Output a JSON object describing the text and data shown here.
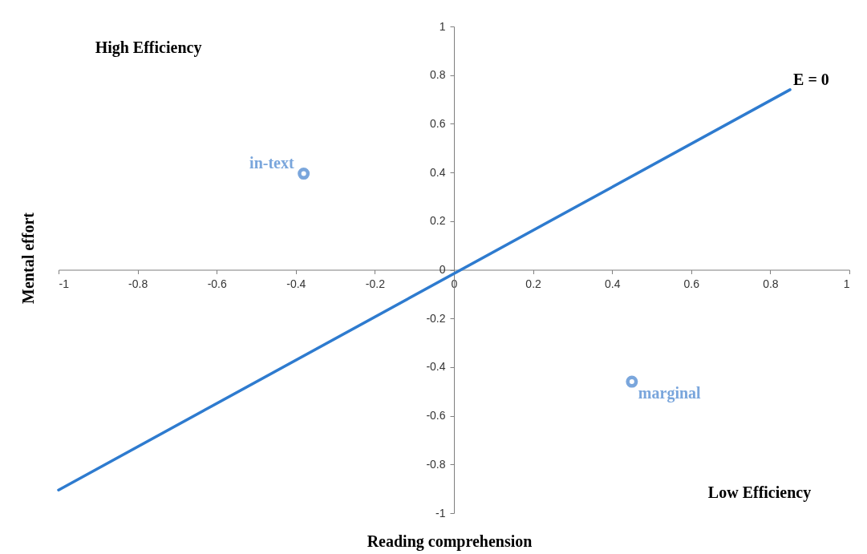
{
  "chart_data": {
    "type": "scatter",
    "xlabel": "Reading comprehension",
    "ylabel": "Mental effort",
    "xlim": [
      -1,
      1
    ],
    "ylim": [
      -1,
      1
    ],
    "xticks": [
      -1,
      -0.8,
      -0.6,
      -0.4,
      -0.2,
      0,
      0.2,
      0.4,
      0.6,
      0.8,
      1
    ],
    "yticks": [
      -1,
      -0.8,
      -0.6,
      -0.4,
      -0.2,
      0,
      0.2,
      0.4,
      0.6,
      0.8,
      1
    ],
    "line_style": "solid",
    "series": [
      {
        "name": "E = 0",
        "type": "line",
        "color": "#2e7bcf",
        "x": [
          -1,
          0.85
        ],
        "values": [
          -0.905,
          0.74
        ]
      },
      {
        "name": "in-text",
        "color": "#7aa6dc",
        "x": [
          -0.38
        ],
        "values": [
          0.395
        ]
      },
      {
        "name": "marginal",
        "color": "#7aa6dc",
        "x": [
          0.45
        ],
        "values": [
          -0.46
        ]
      }
    ],
    "annotations": [
      "High Efficiency",
      "Low Efficiency"
    ]
  }
}
